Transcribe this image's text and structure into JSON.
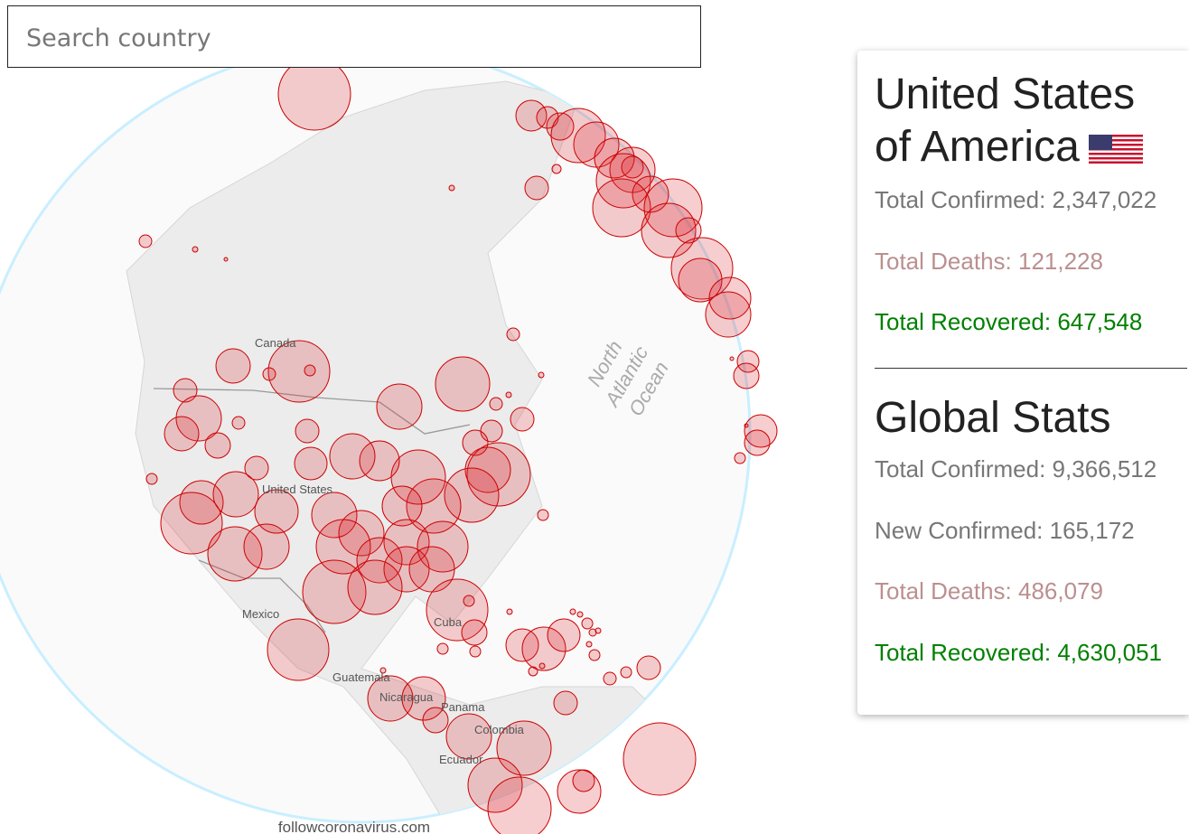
{
  "search": {
    "placeholder": "Search country"
  },
  "map": {
    "ocean_label": [
      "North",
      "Atlantic",
      "Ocean"
    ],
    "places": [
      "Canada",
      "United States",
      "Mexico",
      "Cuba",
      "Guatemala",
      "Nicaragua",
      "Panama",
      "Colombia",
      "Ecuador"
    ],
    "footer": "followcoronavirus.com"
  },
  "country": {
    "name": "United States of America",
    "stats": [
      {
        "label": "Total Confirmed:",
        "value": "2,347,022"
      },
      {
        "label": "Total Deaths:",
        "value": "121,228"
      },
      {
        "label": "Total Recovered:",
        "value": "647,548"
      }
    ]
  },
  "global": {
    "title": "Global Stats",
    "stats": [
      {
        "label": "Total Confirmed:",
        "value": "9,366,512"
      },
      {
        "label": "New Confirmed:",
        "value": "165,172"
      },
      {
        "label": "Total Deaths:",
        "value": "486,079"
      },
      {
        "label": "Total Recovered:",
        "value": "4,630,051"
      }
    ]
  }
}
